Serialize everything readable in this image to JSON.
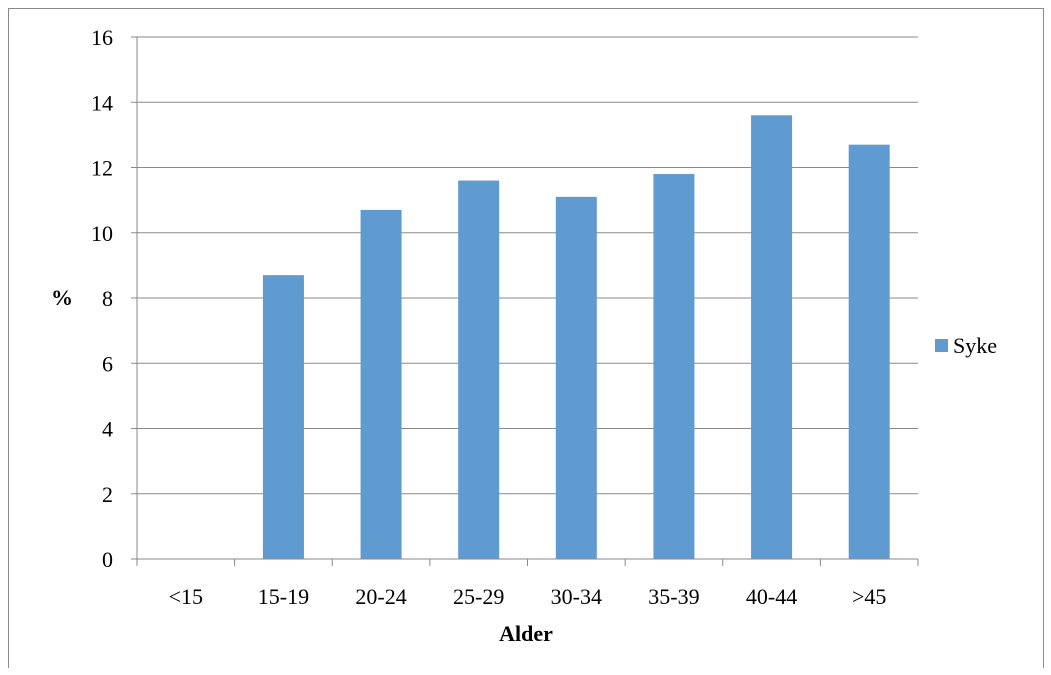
{
  "chart_data": {
    "type": "bar",
    "categories": [
      "<15",
      "15-19",
      "20-24",
      "25-29",
      "30-34",
      "35-39",
      "40-44",
      ">45"
    ],
    "series": [
      {
        "name": "Syke",
        "values": [
          0,
          8.7,
          10.7,
          11.6,
          11.1,
          11.8,
          13.6,
          12.7
        ],
        "color": "#5f9bd1"
      }
    ],
    "xlabel": "Alder",
    "ylabel": "%",
    "ylim": [
      0,
      16
    ],
    "yticks": [
      0,
      2,
      4,
      6,
      8,
      10,
      12,
      14,
      16
    ],
    "grid": true,
    "legend_position": "right"
  }
}
